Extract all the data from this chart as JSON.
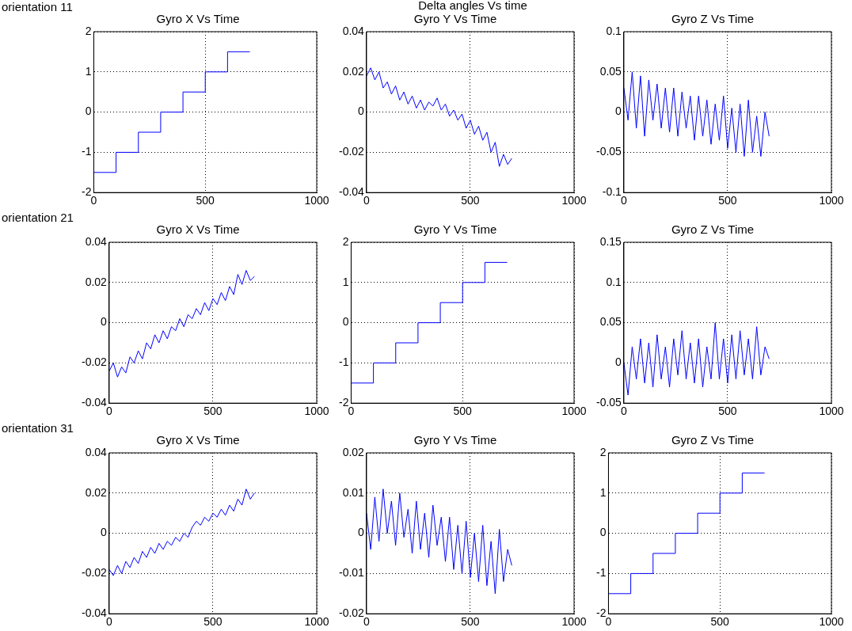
{
  "chart_data": [
    {
      "type": "step",
      "title": "Gyro X Vs Time",
      "annotations": [
        "orientation 11"
      ],
      "x": [
        0,
        100,
        200,
        300,
        400,
        500,
        600,
        700
      ],
      "values": [
        -1.5,
        -1,
        -0.5,
        0,
        0.5,
        1,
        1.5,
        1.5
      ],
      "color": "#0000ff",
      "xlim": [
        0,
        1000
      ],
      "xticks": [
        0,
        500,
        1000
      ],
      "ylim": [
        -2,
        2
      ],
      "yticks": [
        -2,
        -1,
        0,
        1,
        2
      ],
      "grid": true
    },
    {
      "type": "line",
      "title": "Gyro Y Vs Time",
      "annotations": [
        "Delta angles Vs time"
      ],
      "x": [
        0,
        20,
        40,
        60,
        80,
        100,
        120,
        140,
        160,
        180,
        200,
        220,
        240,
        260,
        280,
        300,
        320,
        340,
        360,
        380,
        400,
        420,
        440,
        460,
        480,
        500,
        520,
        540,
        560,
        580,
        600,
        620,
        640,
        660,
        680,
        700
      ],
      "values": [
        0.018,
        0.022,
        0.016,
        0.02,
        0.012,
        0.015,
        0.009,
        0.013,
        0.006,
        0.01,
        0.004,
        0.008,
        0.002,
        0.006,
        0.001,
        0.005,
        0.003,
        0.007,
        0.001,
        0.004,
        -0.002,
        0.001,
        -0.004,
        -0.001,
        -0.008,
        -0.004,
        -0.011,
        -0.007,
        -0.014,
        -0.01,
        -0.02,
        -0.015,
        -0.027,
        -0.021,
        -0.026,
        -0.023
      ],
      "color": "#0000ff",
      "xlim": [
        0,
        1000
      ],
      "xticks": [
        0,
        500,
        1000
      ],
      "ylim": [
        -0.04,
        0.04
      ],
      "yticks": [
        -0.04,
        -0.02,
        0,
        0.02,
        0.04
      ],
      "grid": true
    },
    {
      "type": "line",
      "title": "Gyro Z Vs Time",
      "x": [
        0,
        20,
        40,
        60,
        80,
        100,
        120,
        140,
        160,
        180,
        200,
        220,
        240,
        260,
        280,
        300,
        320,
        340,
        360,
        380,
        400,
        420,
        440,
        460,
        480,
        500,
        520,
        540,
        560,
        580,
        600,
        620,
        640,
        660,
        680,
        700
      ],
      "values": [
        0.03,
        -0.01,
        0.05,
        -0.02,
        0.045,
        -0.03,
        0.04,
        -0.01,
        0.035,
        -0.02,
        0.03,
        -0.025,
        0.03,
        -0.03,
        0.025,
        -0.02,
        0.02,
        -0.035,
        0.02,
        -0.03,
        0.015,
        -0.04,
        0.01,
        -0.035,
        0.02,
        -0.045,
        0.005,
        -0.05,
        0.01,
        -0.055,
        0.015,
        -0.05,
        -0.005,
        -0.055,
        0,
        -0.03
      ],
      "color": "#0000ff",
      "xlim": [
        0,
        1000
      ],
      "xticks": [
        0,
        500,
        1000
      ],
      "ylim": [
        -0.1,
        0.1
      ],
      "yticks": [
        -0.1,
        -0.05,
        0,
        0.05,
        0.1
      ],
      "grid": true
    },
    {
      "type": "line",
      "title": "Gyro X Vs Time",
      "annotations": [
        "orientation 21"
      ],
      "x": [
        0,
        20,
        40,
        60,
        80,
        100,
        120,
        140,
        160,
        180,
        200,
        220,
        240,
        260,
        280,
        300,
        320,
        340,
        360,
        380,
        400,
        420,
        440,
        460,
        480,
        500,
        520,
        540,
        560,
        580,
        600,
        620,
        640,
        660,
        680,
        700
      ],
      "values": [
        -0.024,
        -0.02,
        -0.027,
        -0.022,
        -0.025,
        -0.017,
        -0.02,
        -0.014,
        -0.018,
        -0.01,
        -0.013,
        -0.006,
        -0.01,
        -0.004,
        -0.008,
        -0.002,
        -0.004,
        0.002,
        -0.002,
        0.004,
        0.002,
        0.007,
        0.004,
        0.01,
        0.006,
        0.012,
        0.009,
        0.015,
        0.011,
        0.018,
        0.014,
        0.024,
        0.019,
        0.026,
        0.021,
        0.023
      ],
      "color": "#0000ff",
      "xlim": [
        0,
        1000
      ],
      "xticks": [
        0,
        500,
        1000
      ],
      "ylim": [
        -0.04,
        0.04
      ],
      "yticks": [
        -0.04,
        -0.02,
        0,
        0.02,
        0.04
      ],
      "grid": true
    },
    {
      "type": "step",
      "title": "Gyro Y Vs Time",
      "x": [
        0,
        100,
        200,
        300,
        400,
        500,
        600,
        700
      ],
      "values": [
        -1.5,
        -1,
        -0.5,
        0,
        0.5,
        1,
        1.5,
        1.5
      ],
      "color": "#0000ff",
      "xlim": [
        0,
        1000
      ],
      "xticks": [
        0,
        500,
        1000
      ],
      "ylim": [
        -2,
        2
      ],
      "yticks": [
        -2,
        -1,
        0,
        1,
        2
      ],
      "grid": true
    },
    {
      "type": "line",
      "title": "Gyro Z Vs Time",
      "x": [
        0,
        20,
        40,
        60,
        80,
        100,
        120,
        140,
        160,
        180,
        200,
        220,
        240,
        260,
        280,
        300,
        320,
        340,
        360,
        380,
        400,
        420,
        440,
        460,
        480,
        500,
        520,
        540,
        560,
        580,
        600,
        620,
        640,
        660,
        680,
        700
      ],
      "values": [
        0,
        -0.04,
        0.02,
        -0.02,
        0.03,
        -0.025,
        0.025,
        -0.03,
        0.035,
        -0.02,
        0.02,
        -0.03,
        0.03,
        -0.015,
        0.04,
        -0.02,
        0.025,
        -0.025,
        0.03,
        -0.03,
        0.02,
        -0.02,
        0.05,
        -0.02,
        0.03,
        -0.025,
        0.035,
        -0.02,
        0.04,
        -0.015,
        0.03,
        -0.02,
        0.045,
        -0.015,
        0.02,
        0.005
      ],
      "color": "#0000ff",
      "xlim": [
        0,
        1000
      ],
      "xticks": [
        0,
        500,
        1000
      ],
      "ylim": [
        -0.05,
        0.15
      ],
      "yticks": [
        -0.05,
        0,
        0.05,
        0.1,
        0.15
      ],
      "grid": true
    },
    {
      "type": "line",
      "title": "Gyro X Vs Time",
      "annotations": [
        "orientation 31"
      ],
      "x": [
        0,
        20,
        40,
        60,
        80,
        100,
        120,
        140,
        160,
        180,
        200,
        220,
        240,
        260,
        280,
        300,
        320,
        340,
        360,
        380,
        400,
        420,
        440,
        460,
        480,
        500,
        520,
        540,
        560,
        580,
        600,
        620,
        640,
        660,
        680,
        700
      ],
      "values": [
        -0.018,
        -0.021,
        -0.016,
        -0.02,
        -0.014,
        -0.017,
        -0.012,
        -0.015,
        -0.009,
        -0.012,
        -0.007,
        -0.01,
        -0.005,
        -0.008,
        -0.004,
        -0.006,
        -0.002,
        -0.004,
        0,
        -0.002,
        0.003,
        0.006,
        0.004,
        0.008,
        0.006,
        0.01,
        0.008,
        0.012,
        0.009,
        0.014,
        0.011,
        0.017,
        0.014,
        0.022,
        0.017,
        0.02
      ],
      "color": "#0000ff",
      "xlim": [
        0,
        1000
      ],
      "xticks": [
        0,
        500,
        1000
      ],
      "ylim": [
        -0.04,
        0.04
      ],
      "yticks": [
        -0.04,
        -0.02,
        0,
        0.02,
        0.04
      ],
      "grid": true
    },
    {
      "type": "line",
      "title": "Gyro Y Vs Time",
      "x": [
        0,
        20,
        40,
        60,
        80,
        100,
        120,
        140,
        160,
        180,
        200,
        220,
        240,
        260,
        280,
        300,
        320,
        340,
        360,
        380,
        400,
        420,
        440,
        460,
        480,
        500,
        520,
        540,
        560,
        580,
        600,
        620,
        640,
        660,
        680,
        700
      ],
      "values": [
        0.005,
        -0.004,
        0.009,
        -0.002,
        0.011,
        0,
        0.008,
        -0.003,
        0.01,
        -0.001,
        0.006,
        -0.005,
        0.008,
        -0.004,
        0.005,
        -0.006,
        0.007,
        -0.003,
        0.004,
        -0.007,
        0.004,
        -0.009,
        0.002,
        -0.01,
        0.003,
        -0.011,
        0,
        -0.012,
        0.002,
        -0.013,
        -0.002,
        -0.015,
        0.001,
        -0.012,
        -0.004,
        -0.008
      ],
      "color": "#0000ff",
      "xlim": [
        0,
        1000
      ],
      "xticks": [
        0,
        500,
        1000
      ],
      "ylim": [
        -0.02,
        0.02
      ],
      "yticks": [
        -0.02,
        -0.01,
        0,
        0.01,
        0.02
      ],
      "grid": true
    },
    {
      "type": "step",
      "title": "Gyro Z Vs Time",
      "x": [
        0,
        100,
        200,
        300,
        400,
        500,
        600,
        700
      ],
      "values": [
        -1.5,
        -1,
        -0.5,
        0,
        0.5,
        1,
        1.5,
        1.5
      ],
      "color": "#0000ff",
      "xlim": [
        0,
        1000
      ],
      "xticks": [
        0,
        500,
        1000
      ],
      "ylim": [
        -2,
        2
      ],
      "yticks": [
        -2,
        -1,
        0,
        1,
        2
      ],
      "grid": true
    }
  ]
}
